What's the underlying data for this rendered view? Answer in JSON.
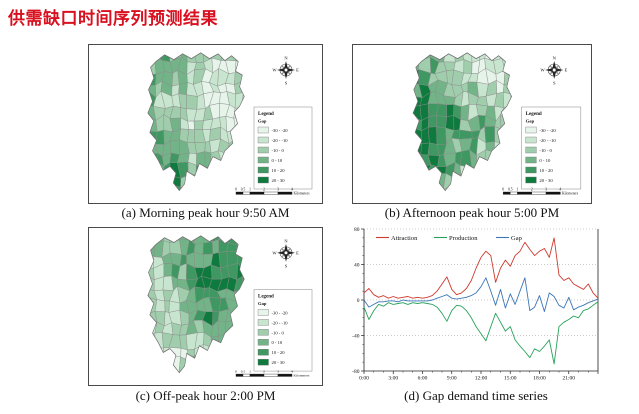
{
  "page": {
    "title": "供需缺口时间序列预测结果",
    "title_color": "#d8101f"
  },
  "panels": {
    "a": {
      "caption": "(a) Morning peak hour 9:50 AM"
    },
    "b": {
      "caption": "(b) Afternoon peak hour 5:00 PM"
    },
    "c": {
      "caption": "(c) Off-peak hour 2:00 PM"
    },
    "d": {
      "caption": "(d) Gap demand time series"
    }
  },
  "map": {
    "legend": {
      "title": "Legend",
      "subtitle": "Gap",
      "classes": [
        {
          "label": "-30 - -20",
          "color": "#e6f4ea"
        },
        {
          "label": "-20 - -10",
          "color": "#c8e5cf"
        },
        {
          "label": "-10 - 0",
          "color": "#a0cdac"
        },
        {
          "label": "0 - 10",
          "color": "#72b487"
        },
        {
          "label": "10 - 20",
          "color": "#3f9862"
        },
        {
          "label": "20 - 30",
          "color": "#0e7a3e"
        }
      ]
    },
    "compass": {
      "n": "N",
      "e": "E",
      "s": "S",
      "w": "W"
    },
    "scalebar": {
      "ticks": [
        "0",
        "0.5",
        "1",
        "2",
        "3",
        "4"
      ],
      "unit": "Kilometers"
    }
  },
  "chart_data": [
    {
      "type": "choropleth",
      "panel": "a",
      "title": "(a) Morning peak hour 9:50 AM",
      "variable": "Gap",
      "breaks": [
        -30,
        -20,
        -10,
        0,
        10,
        20,
        30
      ]
    },
    {
      "type": "choropleth",
      "panel": "b",
      "title": "(b) Afternoon peak hour 5:00 PM",
      "variable": "Gap",
      "breaks": [
        -30,
        -20,
        -10,
        0,
        10,
        20,
        30
      ]
    },
    {
      "type": "choropleth",
      "panel": "c",
      "title": "(c) Off-peak hour 2:00 PM",
      "variable": "Gap",
      "breaks": [
        -30,
        -20,
        -10,
        0,
        10,
        20,
        30
      ]
    },
    {
      "type": "line",
      "title": "(d) Gap demand time series",
      "xlabel": "",
      "ylabel": "",
      "xlim": [
        0,
        24
      ],
      "ylim": [
        -80,
        80
      ],
      "x_ticks": [
        "0:00",
        "3:00",
        "6:00",
        "9:00",
        "12:00",
        "15:00",
        "18:00",
        "21:00"
      ],
      "x_tick_hours": [
        0,
        3,
        6,
        9,
        12,
        15,
        18,
        21
      ],
      "y_ticks": [
        80,
        40,
        0,
        -40,
        -80
      ],
      "grid_y": [
        80,
        40,
        0,
        -40
      ],
      "x_step_hours": 0.5,
      "legend_position": "top-left-inside",
      "series": [
        {
          "name": "Attraction",
          "color": "#cf3a2e",
          "values": [
            8,
            13,
            6,
            3,
            5,
            2,
            4,
            2,
            3,
            4,
            2,
            3,
            2,
            3,
            5,
            10,
            18,
            26,
            12,
            6,
            8,
            13,
            22,
            36,
            48,
            55,
            50,
            20,
            36,
            45,
            38,
            50,
            55,
            65,
            57,
            50,
            55,
            58,
            48,
            70,
            28,
            22,
            25,
            18,
            15,
            12,
            18,
            8,
            2
          ]
        },
        {
          "name": "Production",
          "color": "#27a25a",
          "values": [
            -8,
            -22,
            -12,
            -5,
            -7,
            -3,
            -5,
            -4,
            -3,
            -5,
            -3,
            -4,
            -3,
            -4,
            -5,
            -8,
            -15,
            -24,
            -12,
            -6,
            -7,
            -12,
            -20,
            -30,
            -38,
            -46,
            -30,
            -15,
            -25,
            -35,
            -30,
            -45,
            -52,
            -58,
            -65,
            -55,
            -58,
            -52,
            -45,
            -72,
            -30,
            -25,
            -22,
            -18,
            -20,
            -12,
            -10,
            -6,
            -2
          ]
        },
        {
          "name": "Gap",
          "color": "#3a76b8",
          "values": [
            0,
            -8,
            -5,
            -2,
            -2,
            -1,
            -1,
            -2,
            0,
            -1,
            -1,
            -1,
            -1,
            -1,
            0,
            2,
            4,
            6,
            2,
            1,
            2,
            3,
            5,
            8,
            15,
            25,
            10,
            -6,
            12,
            -9,
            7,
            -5,
            10,
            25,
            -12,
            -8,
            5,
            -13,
            8,
            4,
            -6,
            -9,
            3,
            -11,
            -8,
            -6,
            -3,
            -1,
            1
          ]
        }
      ]
    }
  ]
}
